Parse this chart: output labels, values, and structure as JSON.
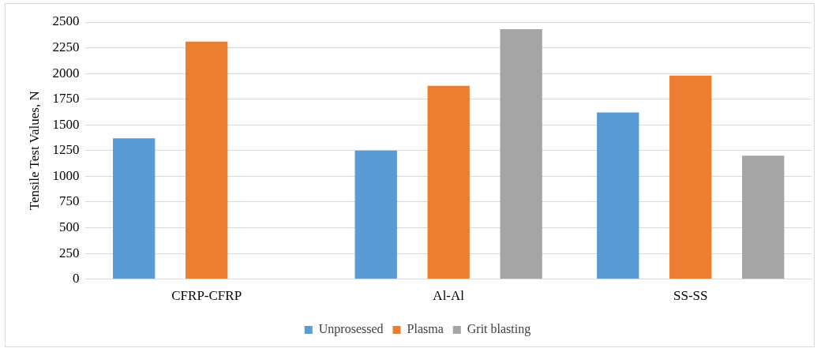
{
  "chart_data": {
    "type": "bar",
    "ylabel": "Tensile Test Values, N",
    "categories": [
      "CFRP-CFRP",
      "Al-Al",
      "SS-SS"
    ],
    "series": [
      {
        "name": "Unprosessed",
        "color": "#5b9bd5",
        "values": [
          1370,
          1250,
          1620
        ]
      },
      {
        "name": "Plasma",
        "color": "#ed7d31",
        "values": [
          2310,
          1880,
          1980
        ]
      },
      {
        "name": "Grit blasting",
        "color": "#a5a5a5",
        "values": [
          null,
          2430,
          1200
        ]
      }
    ],
    "ylim": [
      0,
      2500
    ],
    "yticks": [
      0,
      250,
      500,
      750,
      1000,
      1250,
      1500,
      1750,
      2000,
      2250,
      2500
    ],
    "grid": "y",
    "legend": "bottom"
  }
}
